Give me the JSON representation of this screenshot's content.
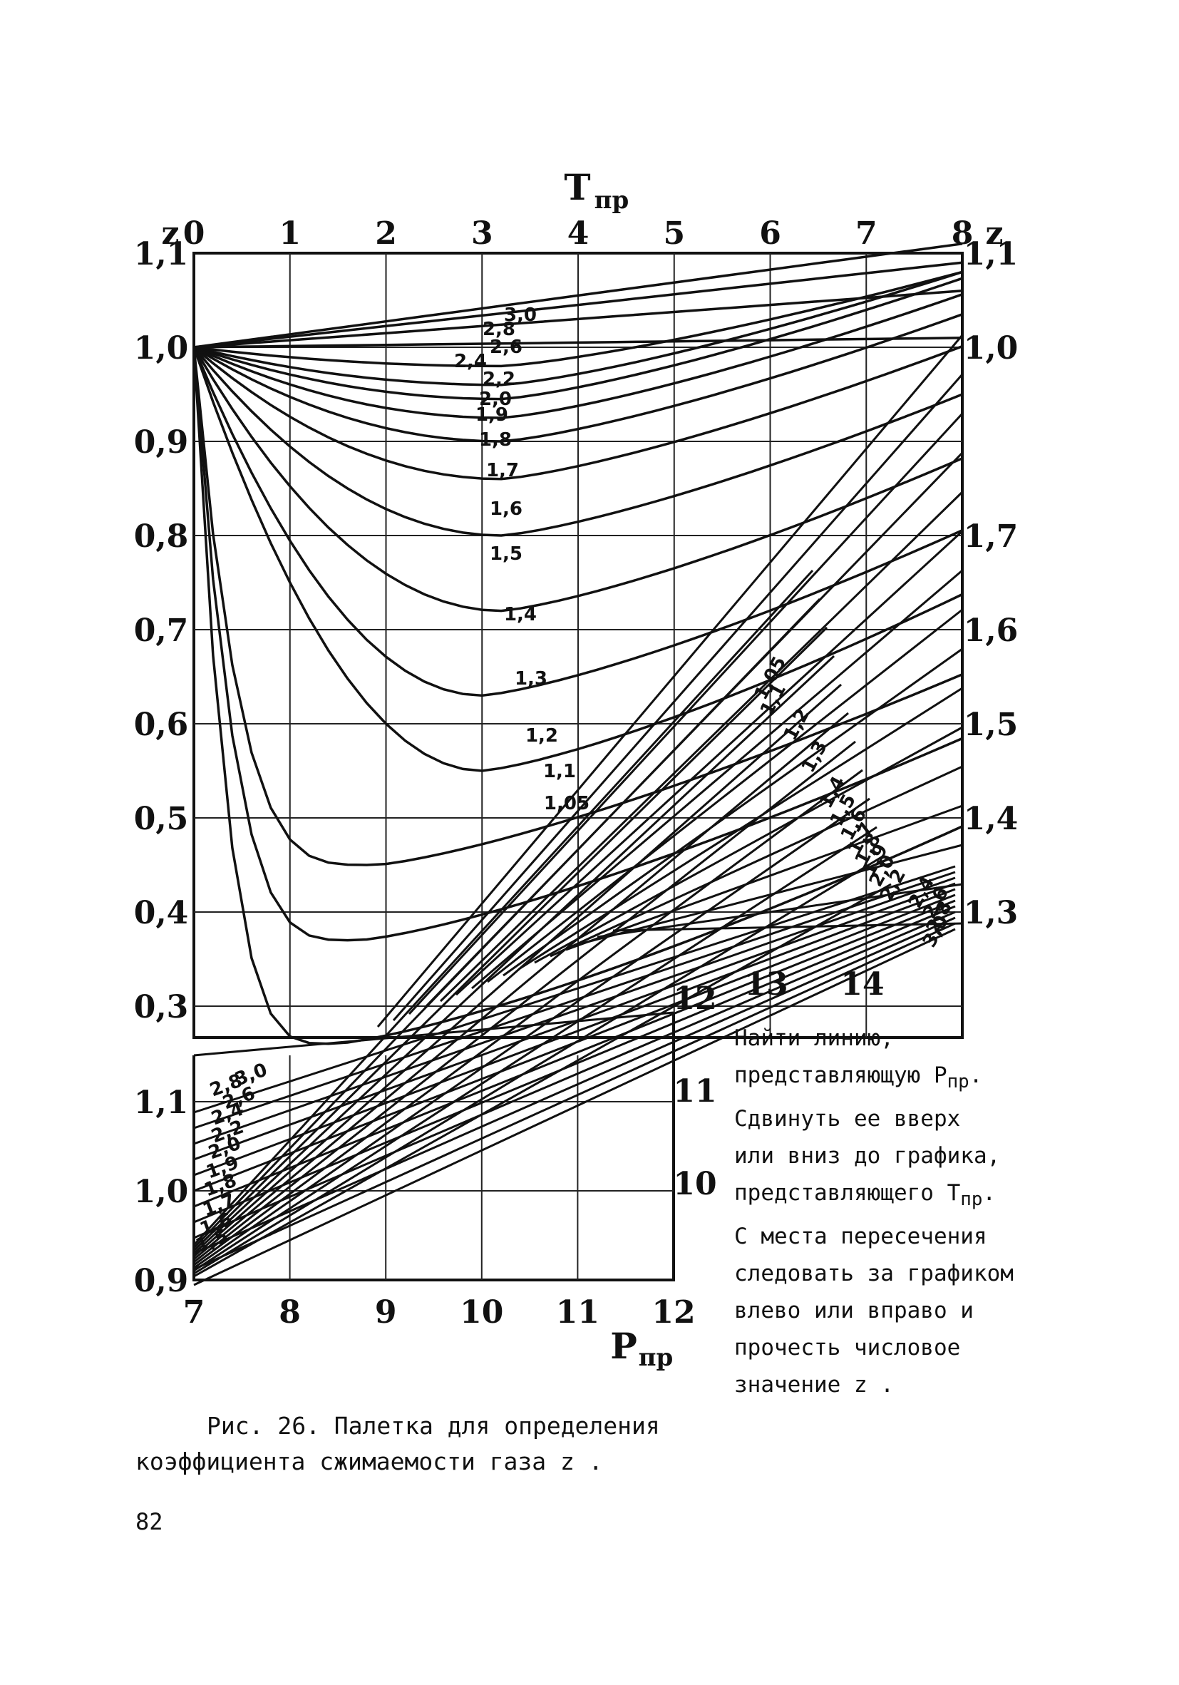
{
  "chart_data": {
    "type": "line",
    "axes": {
      "top_title": "T",
      "top_title_sub": "пр",
      "bottom_title": "P",
      "bottom_title_sub": "пр",
      "z_label_left": "z",
      "z_label_right": "z",
      "top_ticks": [
        "0",
        "1",
        "2",
        "3",
        "4",
        "5",
        "6",
        "7",
        "8"
      ],
      "left_z_ticks": [
        "1,1",
        "1,0",
        "0,9",
        "0,8",
        "0,7",
        "0,6",
        "0,5",
        "0,4",
        "0,3"
      ],
      "left_z_ticks_lower": [
        "1,1",
        "1,0",
        "0,9"
      ],
      "right_z_ticks": [
        "1,1",
        "1,0",
        "1,7",
        "1,6",
        "1,5",
        "1,4",
        "1,3"
      ],
      "bottom_ticks": [
        "7",
        "8",
        "9",
        "10",
        "11",
        "12"
      ],
      "right_p_ticks": [
        "12",
        "11",
        "10"
      ],
      "lower_right_ticks": [
        "13",
        "14"
      ]
    },
    "upper_curve_labels": [
      "3,0",
      "2,8",
      "2,6",
      "2,4",
      "2,2",
      "2,0",
      "1,9",
      "1,8",
      "1,7",
      "1,6",
      "1,5",
      "1,4",
      "1,3",
      "1,2",
      "1,1",
      "1,05"
    ],
    "upper_curves": [
      {
        "t": "3,0",
        "min_z": 1.05
      },
      {
        "t": "2,8",
        "min_z": 1.04
      },
      {
        "t": "2,6",
        "min_z": 1.025
      },
      {
        "t": "2,4",
        "min_z": 1.0
      },
      {
        "t": "2,2",
        "min_z": 0.98
      },
      {
        "t": "2,0",
        "min_z": 0.96
      },
      {
        "t": "1,9",
        "min_z": 0.945
      },
      {
        "t": "1,8",
        "min_z": 0.925
      },
      {
        "t": "1,7",
        "min_z": 0.9
      },
      {
        "t": "1,6",
        "min_z": 0.86
      },
      {
        "t": "1,5",
        "min_z": 0.8
      },
      {
        "t": "1,4",
        "min_z": 0.72
      },
      {
        "t": "1,3",
        "min_z": 0.63
      },
      {
        "t": "1,2",
        "min_z": 0.55
      },
      {
        "t": "1,1",
        "min_z": 0.45
      },
      {
        "t": "1,05",
        "min_z": 0.37
      },
      {
        "t": "1,0",
        "min_z": 0.26
      }
    ],
    "diag_labels": [
      "1,05",
      "1,1",
      "1,2",
      "1,3",
      "1,4",
      "1,5",
      "1,6",
      "1,7",
      "1,8",
      "1,9",
      "2,0",
      "2,2",
      "2,4",
      "2,6",
      "2,8",
      "3,0"
    ],
    "lower_left_labels": [
      "3,0",
      "2,8",
      "2,6",
      "2,4",
      "2,2",
      "2,0",
      "1,9",
      "1,8",
      "1,7",
      "1,6",
      "1,5"
    ]
  },
  "instructions": [
    {
      "text": "Найти линию,",
      "sub": ""
    },
    {
      "text": "представляющую P",
      "sub": "пр",
      "after": "."
    },
    {
      "text": "Сдвинуть ее вверх",
      "sub": ""
    },
    {
      "text": "или вниз до графика,",
      "sub": ""
    },
    {
      "text": "представляющего T",
      "sub": "пр",
      "after": "."
    },
    {
      "text": "С места пересечения",
      "sub": ""
    },
    {
      "text": "следовать за графиком",
      "sub": ""
    },
    {
      "text": "влево или вправо и",
      "sub": ""
    },
    {
      "text": "прочесть числовое",
      "sub": ""
    },
    {
      "text": "значение z .",
      "sub": ""
    }
  ],
  "caption": {
    "line1": "Рис. 26. Палетка для определения",
    "line2": "коэффициента сжимаемости газа z ."
  },
  "page_number": "82"
}
